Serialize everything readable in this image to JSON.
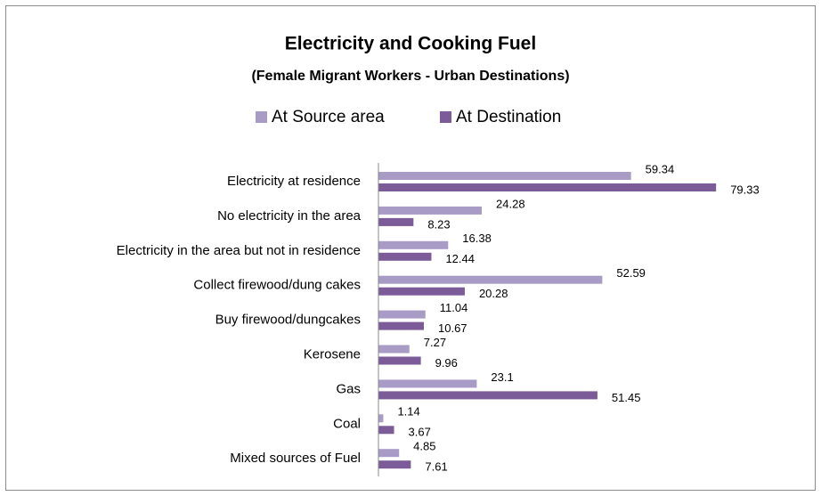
{
  "chart_data": {
    "type": "hbar",
    "title": "Electricity and Cooking Fuel",
    "subtitle": "(Female Migrant Workers - Urban Destinations)",
    "categories": [
      "Electricity at residence",
      "No electricity in the area",
      "Electricity in the area but not in residence",
      "Collect firewood/dung cakes",
      "Buy firewood/dungcakes",
      "Kerosene",
      "Gas",
      "Coal",
      "Mixed sources of Fuel"
    ],
    "series": [
      {
        "name": "At Source area",
        "color": "#a89bc6",
        "values": [
          59.34,
          24.28,
          16.38,
          52.59,
          11.04,
          7.27,
          23.1,
          1.14,
          4.85
        ]
      },
      {
        "name": "At Destination",
        "color": "#7b5b98",
        "values": [
          79.33,
          8.23,
          12.44,
          20.28,
          10.67,
          9.96,
          51.45,
          3.67,
          7.61
        ]
      }
    ],
    "xlim": [
      0,
      100
    ],
    "legend": "top"
  }
}
